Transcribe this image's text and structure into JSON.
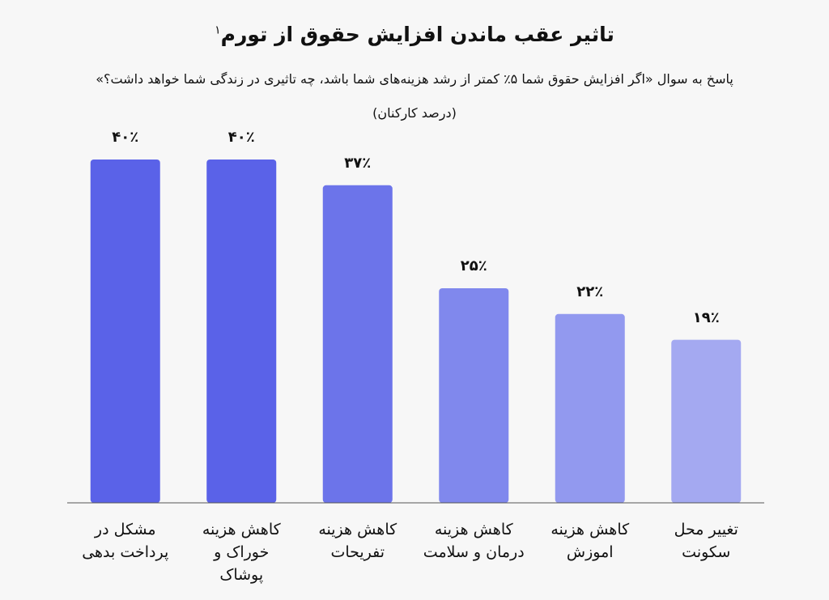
{
  "chart_data": {
    "type": "bar",
    "title": "تاثیر عقب ماندن افزایش حقوق از تورم",
    "title_footnote": "۱",
    "subtitle": "پاسخ به سوال «اگر افزایش حقوق شما ۵٪ کمتر از رشد هزینه‌های شما باشد، چه تاثیری در زندگی شما خواهد داشت؟»",
    "unit_note": "(درصد کارکنان)",
    "categories": [
      "مشکل در پرداخت بدهی",
      "کاهش هزینه خوراک و پوشاک",
      "کاهش هزینه تفریحات",
      "کاهش هزینه درمان و سلامت",
      "کاهش هزینه اموزش",
      "تغییر محل سکونت"
    ],
    "values": [
      40,
      40,
      37,
      25,
      22,
      19
    ],
    "value_labels": [
      "۴۰٪",
      "۴۰٪",
      "۳۷٪",
      "۲۵٪",
      "۲۲٪",
      "۱۹٪"
    ],
    "colors": [
      "#5a62e8",
      "#5a62e8",
      "#6c74ea",
      "#8088ed",
      "#9299ef",
      "#a4a9f1"
    ],
    "ylim": [
      0,
      40
    ],
    "grid": false
  }
}
